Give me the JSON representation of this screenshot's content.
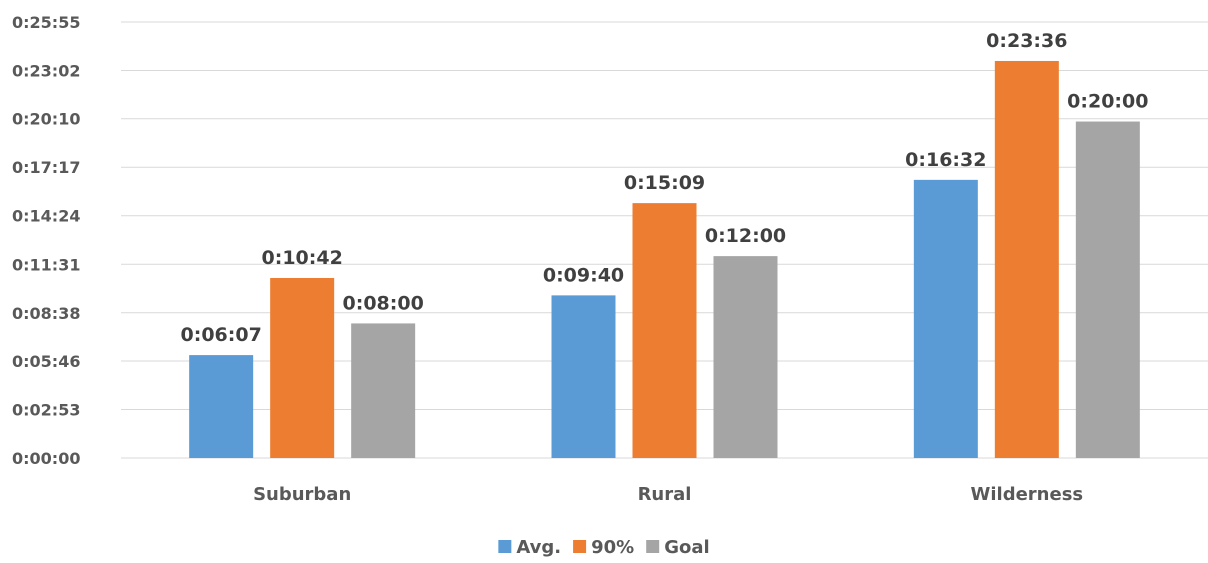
{
  "chart_data": {
    "type": "bar",
    "title": "",
    "xlabel": "",
    "ylabel": "",
    "categories": [
      "Suburban",
      "Rural",
      "Wilderness"
    ],
    "series": [
      {
        "name": "Avg.",
        "color": "#5b9bd5",
        "values": [
          "0:06:07",
          "0:09:40",
          "0:16:32"
        ]
      },
      {
        "name": "90%",
        "color": "#ed7d31",
        "values": [
          "0:10:42",
          "0:15:09",
          "0:23:36"
        ]
      },
      {
        "name": "Goal",
        "color": "#a5a5a5",
        "values": [
          "0:08:00",
          "0:12:00",
          "0:20:00"
        ]
      }
    ],
    "y_ticks": [
      "0:00:00",
      "0:02:53",
      "0:05:46",
      "0:08:38",
      "0:11:31",
      "0:14:24",
      "0:17:17",
      "0:20:10",
      "0:23:02",
      "0:25:55"
    ],
    "ylim": [
      "0:00:00",
      "0:25:55"
    ],
    "grid": true,
    "legend": "bottom-center"
  }
}
